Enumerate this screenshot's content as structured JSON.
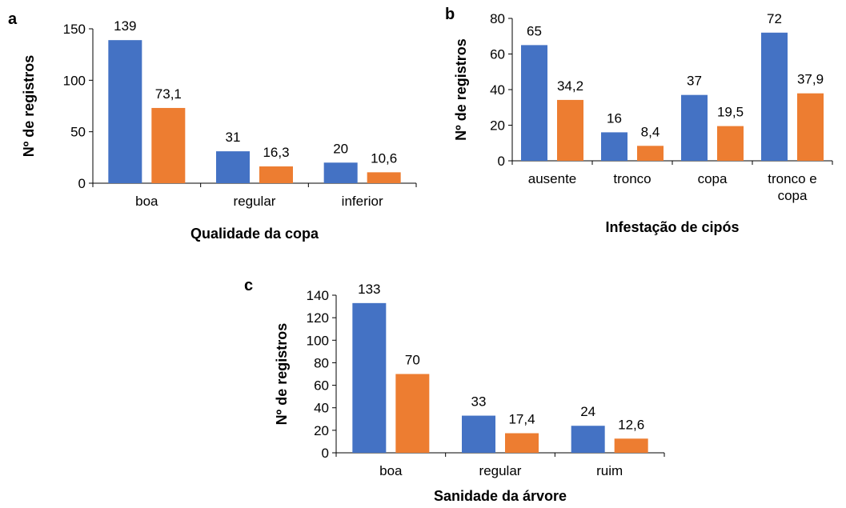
{
  "colors": {
    "series_1": "#4472C4",
    "series_2": "#ED7D31"
  },
  "chart_data": [
    {
      "panel": "a",
      "type": "bar",
      "categories": [
        "boa",
        "regular",
        "inferior"
      ],
      "series": [
        {
          "values": [
            139,
            31,
            20
          ],
          "labels": [
            "139",
            "31",
            "20"
          ]
        },
        {
          "values": [
            73.1,
            16.3,
            10.6
          ],
          "labels": [
            "73,1",
            "16,3",
            "10,6"
          ]
        }
      ],
      "xlabel": "Qualidade da copa",
      "ylabel": "Nº de registros",
      "ylim": [
        0,
        150
      ],
      "yticks": [
        0,
        50,
        100,
        150
      ],
      "grid": false,
      "legend": "none"
    },
    {
      "panel": "b",
      "type": "bar",
      "categories": [
        "ausente",
        "tronco",
        "copa",
        "tronco e copa"
      ],
      "series": [
        {
          "values": [
            65,
            16,
            37,
            72
          ],
          "labels": [
            "65",
            "16",
            "37",
            "72"
          ]
        },
        {
          "values": [
            34.2,
            8.4,
            19.5,
            37.9
          ],
          "labels": [
            "34,2",
            "8,4",
            "19,5",
            "37,9"
          ]
        }
      ],
      "xlabel": "Infestação de cipós",
      "ylabel": "Nº de registros",
      "ylim": [
        0,
        80
      ],
      "yticks": [
        0,
        20,
        40,
        60,
        80
      ],
      "grid": false,
      "legend": "none"
    },
    {
      "panel": "c",
      "type": "bar",
      "categories": [
        "boa",
        "regular",
        "ruim"
      ],
      "series": [
        {
          "values": [
            133,
            33,
            24
          ],
          "labels": [
            "133",
            "33",
            "24"
          ]
        },
        {
          "values": [
            70,
            17.4,
            12.6
          ],
          "labels": [
            "70",
            "17,4",
            "12,6"
          ]
        }
      ],
      "xlabel": "Sanidade da árvore",
      "ylabel": "Nº de registros",
      "ylim": [
        0,
        140
      ],
      "yticks": [
        0,
        20,
        40,
        60,
        80,
        100,
        120,
        140
      ],
      "grid": false,
      "legend": "none"
    }
  ]
}
